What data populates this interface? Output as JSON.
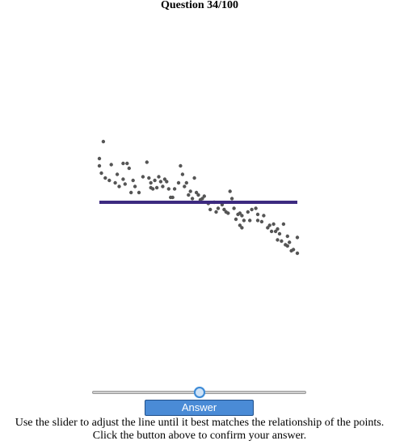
{
  "header": {
    "question_label": "Question 34/100"
  },
  "controls": {
    "answer_label": "Answer",
    "slider_value": 0.5
  },
  "instructions": {
    "line1": "Use the slider to adjust the line until it best matches the relationship of the points.",
    "line2": "Click the button above to confirm your answer."
  },
  "colors": {
    "points": "#555555",
    "fit_line": "#3d2a80",
    "button": "#4a8bd6"
  },
  "chart_data": {
    "type": "scatter",
    "title": "",
    "xlabel": "",
    "ylabel": "",
    "xlim": [
      0,
      1
    ],
    "ylim": [
      0,
      1
    ],
    "grid": false,
    "points": [
      [
        0.0,
        0.78
      ],
      [
        0.0,
        0.72
      ],
      [
        0.02,
        0.92
      ],
      [
        0.01,
        0.66
      ],
      [
        0.03,
        0.62
      ],
      [
        0.05,
        0.6
      ],
      [
        0.06,
        0.73
      ],
      [
        0.08,
        0.58
      ],
      [
        0.09,
        0.65
      ],
      [
        0.1,
        0.55
      ],
      [
        0.12,
        0.74
      ],
      [
        0.12,
        0.61
      ],
      [
        0.13,
        0.57
      ],
      [
        0.14,
        0.74
      ],
      [
        0.15,
        0.7
      ],
      [
        0.16,
        0.5
      ],
      [
        0.17,
        0.6
      ],
      [
        0.18,
        0.55
      ],
      [
        0.2,
        0.5
      ],
      [
        0.22,
        0.63
      ],
      [
        0.24,
        0.75
      ],
      [
        0.25,
        0.62
      ],
      [
        0.26,
        0.58
      ],
      [
        0.26,
        0.54
      ],
      [
        0.27,
        0.53
      ],
      [
        0.28,
        0.6
      ],
      [
        0.29,
        0.54
      ],
      [
        0.3,
        0.63
      ],
      [
        0.31,
        0.59
      ],
      [
        0.32,
        0.55
      ],
      [
        0.33,
        0.61
      ],
      [
        0.34,
        0.59
      ],
      [
        0.35,
        0.53
      ],
      [
        0.36,
        0.46
      ],
      [
        0.37,
        0.46
      ],
      [
        0.38,
        0.53
      ],
      [
        0.4,
        0.58
      ],
      [
        0.41,
        0.72
      ],
      [
        0.42,
        0.65
      ],
      [
        0.43,
        0.55
      ],
      [
        0.44,
        0.58
      ],
      [
        0.45,
        0.48
      ],
      [
        0.46,
        0.51
      ],
      [
        0.47,
        0.45
      ],
      [
        0.48,
        0.62
      ],
      [
        0.49,
        0.5
      ],
      [
        0.5,
        0.48
      ],
      [
        0.51,
        0.44
      ],
      [
        0.52,
        0.45
      ],
      [
        0.53,
        0.47
      ],
      [
        0.55,
        0.41
      ],
      [
        0.56,
        0.36
      ],
      [
        0.58,
        0.42
      ],
      [
        0.59,
        0.34
      ],
      [
        0.6,
        0.37
      ],
      [
        0.62,
        0.4
      ],
      [
        0.63,
        0.36
      ],
      [
        0.64,
        0.34
      ],
      [
        0.65,
        0.33
      ],
      [
        0.66,
        0.51
      ],
      [
        0.67,
        0.45
      ],
      [
        0.68,
        0.37
      ],
      [
        0.69,
        0.28
      ],
      [
        0.7,
        0.32
      ],
      [
        0.71,
        0.33
      ],
      [
        0.72,
        0.31
      ],
      [
        0.73,
        0.27
      ],
      [
        0.75,
        0.34
      ],
      [
        0.76,
        0.27
      ],
      [
        0.77,
        0.36
      ],
      [
        0.79,
        0.37
      ],
      [
        0.8,
        0.32
      ],
      [
        0.82,
        0.26
      ],
      [
        0.83,
        0.31
      ],
      [
        0.85,
        0.21
      ],
      [
        0.86,
        0.23
      ],
      [
        0.87,
        0.18
      ],
      [
        0.88,
        0.24
      ],
      [
        0.89,
        0.18
      ],
      [
        0.9,
        0.2
      ],
      [
        0.91,
        0.16
      ],
      [
        0.92,
        0.1
      ],
      [
        0.93,
        0.24
      ],
      [
        0.94,
        0.07
      ],
      [
        0.95,
        0.06
      ],
      [
        0.96,
        0.09
      ],
      [
        0.97,
        0.02
      ],
      [
        0.98,
        0.03
      ],
      [
        1.0,
        0.0
      ],
      [
        0.71,
        0.23
      ],
      [
        0.72,
        0.21
      ],
      [
        0.8,
        0.27
      ],
      [
        0.9,
        0.11
      ],
      [
        0.95,
        0.14
      ],
      [
        1.0,
        0.13
      ]
    ],
    "fit_line": {
      "x": [
        0.0,
        1.0
      ],
      "y": [
        0.42,
        0.42
      ]
    }
  }
}
